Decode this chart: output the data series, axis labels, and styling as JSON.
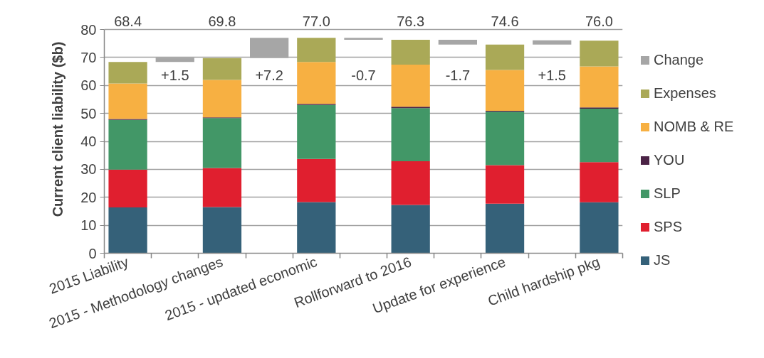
{
  "chart_data": {
    "type": "bar",
    "stacked": true,
    "ylabel": "Current client liability ($b)",
    "categories": [
      "2015 Liability",
      null,
      "2015 - Methodology changes",
      null,
      "2015 - updated economic",
      null,
      "Rollforward to 2016",
      null,
      "Update for experience",
      null,
      "Child hardship pkg"
    ],
    "series": [
      {
        "name": "JS",
        "color": "#356179",
        "values": [
          16.4,
          null,
          16.5,
          null,
          18.3,
          null,
          17.3,
          null,
          17.7,
          null,
          18.2
        ]
      },
      {
        "name": "SPS",
        "color": "#e01f2f",
        "values": [
          13.5,
          null,
          14.0,
          null,
          15.4,
          null,
          15.6,
          null,
          13.8,
          null,
          14.4
        ]
      },
      {
        "name": "SLP",
        "color": "#429767",
        "values": [
          17.8,
          null,
          17.8,
          null,
          19.3,
          null,
          19.0,
          null,
          19.1,
          null,
          19.1
        ]
      },
      {
        "name": "YOU",
        "color": "#4b2346",
        "values": [
          0.3,
          null,
          0.3,
          null,
          0.4,
          null,
          0.5,
          null,
          0.3,
          null,
          0.4
        ]
      },
      {
        "name": "NOMB & RE",
        "color": "#f7b042",
        "values": [
          12.7,
          null,
          13.4,
          null,
          15.0,
          null,
          15.0,
          null,
          14.6,
          null,
          14.7
        ]
      },
      {
        "name": "Expenses",
        "color": "#aaa957",
        "values": [
          7.7,
          null,
          7.8,
          null,
          8.6,
          null,
          8.9,
          null,
          9.1,
          null,
          9.2
        ]
      },
      {
        "name": "Change",
        "color": "#a6a6a6",
        "values": [
          null,
          1.5,
          null,
          7.2,
          null,
          -0.7,
          null,
          -1.7,
          null,
          1.5,
          null
        ],
        "base": [
          null,
          68.4,
          null,
          69.8,
          null,
          77.0,
          null,
          76.3,
          null,
          74.6,
          null
        ],
        "value_labels": [
          null,
          "+1.5",
          null,
          "+7.2",
          null,
          "-0.7",
          null,
          "-1.7",
          null,
          "+1.5",
          null
        ]
      }
    ],
    "totals": [
      "68.4",
      null,
      "69.8",
      null,
      "77.0",
      null,
      "76.3",
      null,
      "74.6",
      null,
      "76.0"
    ],
    "ylim": [
      0,
      80
    ],
    "yticks": [
      0,
      10,
      20,
      30,
      40,
      50,
      60,
      70,
      80
    ],
    "grid": "y",
    "legend": "right"
  }
}
